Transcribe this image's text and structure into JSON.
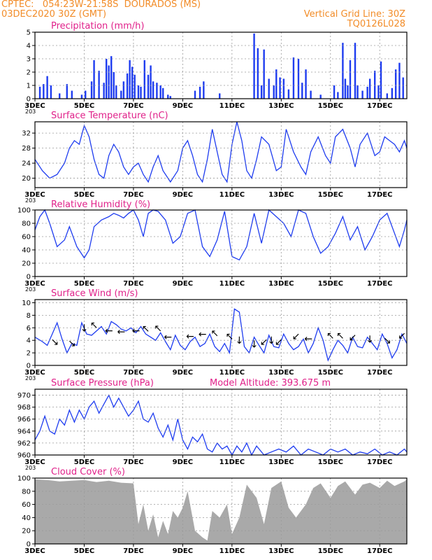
{
  "header": {
    "line1_left": "CPTEC:   054:23W-21:58S  DOURADOS (MS)",
    "line2_left": "03DEC2020 30Z (GMT)",
    "line1_right": "Vertical Grid Line: 30Z",
    "line2_right": "TQ0126L028"
  },
  "colors": {
    "header": "#f28c28",
    "title": "#e0218a",
    "series": "#1e3cf0",
    "cloud": "#a9a9a9",
    "grid": "#9a9a9a"
  },
  "x_axis": {
    "tick_labels": [
      "3DEC",
      "5DEC",
      "7DEC",
      "9DEC",
      "11DEC",
      "13DEC",
      "15DEC",
      "17DEC"
    ],
    "stray_label": "203"
  },
  "chart_data": [
    {
      "id": "precip",
      "type": "bar",
      "title": "Precipitation (mm/h)",
      "ylim": [
        0,
        5
      ],
      "yticks": [
        0,
        1,
        2,
        3,
        4,
        5
      ],
      "x_range": [
        3,
        18.1
      ],
      "x": [
        3.2,
        3.35,
        3.5,
        3.65,
        4.0,
        4.3,
        4.5,
        4.9,
        5.05,
        5.3,
        5.4,
        5.6,
        5.8,
        5.9,
        6.0,
        6.1,
        6.2,
        6.3,
        6.5,
        6.6,
        6.75,
        6.85,
        6.95,
        7.05,
        7.2,
        7.3,
        7.45,
        7.6,
        7.7,
        7.8,
        7.95,
        8.1,
        8.2,
        8.4,
        8.5,
        9.5,
        9.7,
        9.85,
        10.5,
        11.9,
        12.05,
        12.2,
        12.3,
        12.5,
        12.7,
        12.8,
        12.95,
        13.1,
        13.3,
        13.5,
        13.7,
        13.85,
        14.0,
        14.2,
        14.6,
        15.15,
        15.3,
        15.5,
        15.6,
        15.7,
        15.8,
        16.0,
        16.1,
        16.3,
        16.5,
        16.6,
        16.8,
        16.95,
        17.05,
        17.3,
        17.5,
        17.65,
        17.8,
        17.95
      ],
      "values": [
        0.9,
        1.1,
        1.7,
        1.0,
        0.4,
        1.1,
        0.6,
        0.3,
        0.6,
        1.3,
        2.9,
        2.1,
        1.2,
        3.0,
        2.5,
        3.2,
        2.0,
        1.0,
        0.6,
        1.3,
        1.9,
        2.9,
        2.4,
        1.8,
        1.0,
        0.9,
        2.9,
        1.8,
        2.5,
        1.3,
        1.2,
        1.0,
        0.8,
        0.3,
        0.2,
        0.6,
        0.9,
        1.3,
        0.4,
        4.9,
        3.8,
        1.0,
        3.7,
        1.5,
        1.0,
        2.2,
        1.6,
        1.5,
        0.7,
        3.1,
        3.0,
        1.2,
        2.2,
        0.6,
        0.3,
        1.0,
        0.5,
        4.2,
        1.5,
        1.0,
        2.9,
        4.2,
        1.0,
        0.6,
        0.9,
        1.5,
        2.1,
        1.0,
        2.8,
        0.4,
        0.8,
        2.2,
        2.7,
        1.6
      ]
    },
    {
      "id": "temp",
      "type": "line",
      "title": "Surface Temperature (nC)",
      "ylim": [
        17.5,
        35
      ],
      "yticks": [
        20,
        24,
        28,
        32
      ],
      "x_range": [
        3,
        18.1
      ],
      "x": [
        3.0,
        3.3,
        3.6,
        3.9,
        4.2,
        4.4,
        4.6,
        4.8,
        5.0,
        5.2,
        5.4,
        5.6,
        5.8,
        6.0,
        6.2,
        6.4,
        6.6,
        6.8,
        7.0,
        7.2,
        7.4,
        7.6,
        7.8,
        8.0,
        8.2,
        8.5,
        8.8,
        9.0,
        9.2,
        9.4,
        9.6,
        9.8,
        10.0,
        10.2,
        10.4,
        10.6,
        10.8,
        11.0,
        11.2,
        11.4,
        11.6,
        11.8,
        12.0,
        12.2,
        12.5,
        12.8,
        13.0,
        13.2,
        13.5,
        13.8,
        14.0,
        14.2,
        14.5,
        14.8,
        15.0,
        15.2,
        15.5,
        15.8,
        16.0,
        16.2,
        16.5,
        16.8,
        17.0,
        17.2,
        17.4,
        17.6,
        17.8,
        18.0,
        18.1
      ],
      "values": [
        25,
        22,
        20,
        21,
        24,
        28,
        30,
        29,
        34,
        31,
        25,
        21,
        20,
        26,
        29,
        27,
        23,
        21,
        23,
        24,
        21,
        19,
        23,
        26,
        22,
        19,
        22,
        28,
        30,
        26,
        21,
        19,
        25,
        33,
        27,
        21,
        19,
        29,
        35,
        30,
        22,
        20,
        25,
        31,
        29,
        22,
        23,
        33,
        27,
        23,
        21,
        27,
        31,
        26,
        24,
        31,
        33,
        28,
        23,
        29,
        32,
        26,
        27,
        31,
        30,
        29,
        27,
        30,
        28
      ]
    },
    {
      "id": "rh",
      "type": "line",
      "title": "Relative Humidity (%)",
      "ylim": [
        0,
        100
      ],
      "yticks": [
        0,
        20,
        40,
        60,
        80,
        100
      ],
      "x_range": [
        3,
        18.1
      ],
      "x": [
        3.0,
        3.2,
        3.4,
        3.6,
        3.9,
        4.2,
        4.4,
        4.7,
        5.0,
        5.2,
        5.4,
        5.7,
        6.0,
        6.2,
        6.4,
        6.6,
        6.8,
        7.0,
        7.2,
        7.4,
        7.6,
        7.8,
        8.0,
        8.3,
        8.6,
        8.9,
        9.2,
        9.5,
        9.8,
        10.1,
        10.4,
        10.7,
        11.0,
        11.3,
        11.6,
        11.9,
        12.2,
        12.5,
        12.8,
        13.1,
        13.4,
        13.7,
        14.0,
        14.3,
        14.6,
        14.9,
        15.2,
        15.5,
        15.8,
        16.1,
        16.4,
        16.7,
        17.0,
        17.3,
        17.6,
        17.8,
        18.0,
        18.1
      ],
      "values": [
        70,
        90,
        100,
        80,
        45,
        55,
        75,
        45,
        28,
        40,
        75,
        85,
        90,
        95,
        92,
        88,
        95,
        100,
        85,
        60,
        95,
        100,
        98,
        85,
        50,
        60,
        95,
        100,
        45,
        30,
        55,
        98,
        30,
        25,
        45,
        95,
        50,
        100,
        90,
        80,
        60,
        100,
        95,
        60,
        35,
        45,
        65,
        90,
        55,
        75,
        40,
        60,
        85,
        95,
        65,
        45,
        70,
        85
      ]
    },
    {
      "id": "wind",
      "type": "line",
      "title": "Surface Wind (m/s)",
      "ylim": [
        0,
        10.5
      ],
      "yticks": [
        0,
        2,
        4,
        6,
        8,
        10
      ],
      "x_range": [
        3,
        18.1
      ],
      "x": [
        3.0,
        3.3,
        3.5,
        3.7,
        3.9,
        4.1,
        4.3,
        4.5,
        4.7,
        4.9,
        5.1,
        5.3,
        5.5,
        5.7,
        5.9,
        6.1,
        6.3,
        6.5,
        6.7,
        6.9,
        7.1,
        7.3,
        7.5,
        7.7,
        7.9,
        8.1,
        8.3,
        8.5,
        8.7,
        8.9,
        9.1,
        9.3,
        9.5,
        9.7,
        9.9,
        10.1,
        10.3,
        10.5,
        10.7,
        10.9,
        11.1,
        11.3,
        11.5,
        11.7,
        11.9,
        12.1,
        12.3,
        12.5,
        12.7,
        12.9,
        13.1,
        13.3,
        13.5,
        13.7,
        13.9,
        14.1,
        14.3,
        14.5,
        14.7,
        14.9,
        15.1,
        15.3,
        15.5,
        15.7,
        15.9,
        16.1,
        16.3,
        16.5,
        16.7,
        16.9,
        17.1,
        17.3,
        17.5,
        17.7,
        17.9,
        18.1
      ],
      "values": [
        4.5,
        3.8,
        3.2,
        5.0,
        6.8,
        4.2,
        2.0,
        3.5,
        3.2,
        6.8,
        5.0,
        4.8,
        5.5,
        6.2,
        5.0,
        7.0,
        6.5,
        5.8,
        5.5,
        6.0,
        5.2,
        6.2,
        5.0,
        4.5,
        4.0,
        5.2,
        3.8,
        2.5,
        4.8,
        3.2,
        2.5,
        3.8,
        4.5,
        3.0,
        3.5,
        5.0,
        3.0,
        2.2,
        3.5,
        2.0,
        9.0,
        8.5,
        3.0,
        2.0,
        4.5,
        3.2,
        2.0,
        4.8,
        3.0,
        2.8,
        5.0,
        3.5,
        2.5,
        3.0,
        4.2,
        2.0,
        3.5,
        6.0,
        4.0,
        0.8,
        2.5,
        4.0,
        3.2,
        2.0,
        4.5,
        3.0,
        2.8,
        4.5,
        3.5,
        2.5,
        5.0,
        3.5,
        1.2,
        2.5,
        5.0,
        3.5
      ]
    },
    {
      "id": "pressure",
      "type": "line",
      "title": "Surface Pressure (hPa)",
      "annotation": "Model Altitude: 393.675 m",
      "ylim": [
        960,
        971
      ],
      "yticks": [
        960,
        962,
        964,
        966,
        968,
        970
      ],
      "x_range": [
        3,
        18.1
      ],
      "x": [
        3.0,
        3.2,
        3.4,
        3.6,
        3.8,
        4.0,
        4.2,
        4.4,
        4.6,
        4.8,
        5.0,
        5.2,
        5.4,
        5.6,
        5.8,
        6.0,
        6.2,
        6.4,
        6.6,
        6.8,
        7.0,
        7.2,
        7.4,
        7.6,
        7.8,
        8.0,
        8.2,
        8.4,
        8.6,
        8.8,
        9.0,
        9.2,
        9.4,
        9.6,
        9.8,
        10.0,
        10.2,
        10.4,
        10.6,
        10.8,
        11.0,
        11.2,
        11.4,
        11.6,
        11.8,
        12.0,
        12.3,
        12.6,
        12.9,
        13.2,
        13.5,
        13.8,
        14.1,
        14.4,
        14.7,
        15.0,
        15.3,
        15.6,
        15.9,
        16.2,
        16.5,
        16.8,
        17.1,
        17.4,
        17.7,
        18.0,
        18.1
      ],
      "values": [
        962.5,
        964,
        966.5,
        964,
        963.5,
        966,
        965,
        967.5,
        965.5,
        967.5,
        966,
        968,
        969,
        967,
        968.5,
        970,
        968,
        969.5,
        968,
        966.5,
        967.5,
        969,
        966,
        965.5,
        967,
        964.5,
        963,
        965,
        962.5,
        966,
        962.5,
        961,
        963,
        962.2,
        963.5,
        961,
        960.5,
        962,
        961,
        961.5,
        960,
        961.5,
        960.5,
        962,
        960,
        961.5,
        960,
        960.5,
        961,
        960.5,
        961.5,
        960,
        961,
        960.5,
        960,
        961,
        960.5,
        961,
        960,
        960.5,
        960.2,
        961,
        960,
        960.5,
        960,
        961,
        960.5
      ]
    },
    {
      "id": "cloud",
      "type": "area",
      "title": "Cloud Cover (%)",
      "ylim": [
        0,
        100
      ],
      "yticks": [
        0,
        20,
        40,
        60,
        80,
        100
      ],
      "x_range": [
        3,
        18.1
      ],
      "x": [
        3.0,
        3.5,
        4.0,
        4.5,
        5.0,
        5.5,
        6.0,
        6.5,
        7.0,
        7.2,
        7.4,
        7.6,
        7.8,
        8.0,
        8.2,
        8.4,
        8.6,
        8.8,
        9.0,
        9.2,
        9.5,
        9.8,
        10.0,
        10.2,
        10.5,
        10.8,
        11.0,
        11.3,
        11.6,
        12.0,
        12.3,
        12.6,
        13.0,
        13.3,
        13.6,
        14.0,
        14.3,
        14.6,
        15.0,
        15.3,
        15.6,
        16.0,
        16.3,
        16.6,
        17.0,
        17.3,
        17.6,
        18.0,
        18.1
      ],
      "values": [
        98,
        97,
        95,
        96,
        97,
        94,
        96,
        93,
        92,
        30,
        60,
        20,
        45,
        10,
        35,
        15,
        50,
        40,
        55,
        80,
        20,
        10,
        5,
        50,
        40,
        60,
        15,
        40,
        90,
        70,
        30,
        85,
        95,
        55,
        40,
        60,
        85,
        92,
        70,
        88,
        95,
        75,
        90,
        93,
        85,
        96,
        88,
        95,
        98
      ]
    }
  ],
  "wind_barbs": [
    {
      "x": 3.8,
      "y": 3.8,
      "a": "↘"
    },
    {
      "x": 4.5,
      "y": 3.6,
      "a": "↘"
    },
    {
      "x": 5.0,
      "y": 6.0,
      "a": "↓"
    },
    {
      "x": 5.4,
      "y": 6.5,
      "a": "↖"
    },
    {
      "x": 6.0,
      "y": 5.6,
      "a": "←"
    },
    {
      "x": 6.5,
      "y": 5.4,
      "a": "←"
    },
    {
      "x": 7.1,
      "y": 5.6,
      "a": "←"
    },
    {
      "x": 7.5,
      "y": 5.9,
      "a": "↖"
    },
    {
      "x": 8.0,
      "y": 6.0,
      "a": "↖"
    },
    {
      "x": 8.4,
      "y": 4.6,
      "a": "←"
    },
    {
      "x": 9.3,
      "y": 4.7,
      "a": "←"
    },
    {
      "x": 9.8,
      "y": 5.0,
      "a": "←"
    },
    {
      "x": 10.3,
      "y": 5.2,
      "a": "↖"
    },
    {
      "x": 10.9,
      "y": 4.7,
      "a": "↖"
    },
    {
      "x": 11.3,
      "y": 4.0,
      "a": "↓"
    },
    {
      "x": 11.9,
      "y": 3.4,
      "a": "↓"
    },
    {
      "x": 12.3,
      "y": 3.8,
      "a": "↙"
    },
    {
      "x": 12.6,
      "y": 4.0,
      "a": "↓"
    },
    {
      "x": 12.9,
      "y": 3.8,
      "a": "↙"
    },
    {
      "x": 13.6,
      "y": 4.7,
      "a": "↙"
    },
    {
      "x": 14.1,
      "y": 4.3,
      "a": "←"
    },
    {
      "x": 15.0,
      "y": 4.8,
      "a": "↖"
    },
    {
      "x": 15.4,
      "y": 4.8,
      "a": "↖"
    },
    {
      "x": 15.9,
      "y": 4.5,
      "a": "↙"
    },
    {
      "x": 16.6,
      "y": 4.2,
      "a": "↓"
    },
    {
      "x": 17.3,
      "y": 4.0,
      "a": "↘"
    },
    {
      "x": 17.9,
      "y": 4.8,
      "a": "↙"
    }
  ]
}
